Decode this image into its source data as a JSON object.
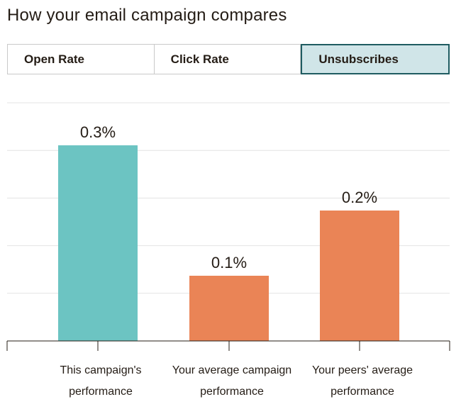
{
  "title": "How your email campaign compares",
  "tabs": [
    {
      "label": "Open Rate",
      "active": false
    },
    {
      "label": "Click Rate",
      "active": false
    },
    {
      "label": "Unsubscribes",
      "active": true
    }
  ],
  "colors": {
    "teal": "#6cc4c2",
    "orange": "#ea8456",
    "grid": "#e3e3e3",
    "axis": "#241c15",
    "active_tab_bg": "#d0e5e8",
    "active_tab_border": "#1f5c61"
  },
  "chart_data": {
    "type": "bar",
    "categories": [
      [
        "This campaign's",
        "performance"
      ],
      [
        "Your average campaign",
        "performance"
      ],
      [
        "Your peers' average",
        "performance"
      ]
    ],
    "values": [
      0.3,
      0.1,
      0.2
    ],
    "value_labels": [
      "0.3%",
      "0.1%",
      "0.2%"
    ],
    "bar_colors": [
      "#6cc4c2",
      "#ea8456",
      "#ea8456"
    ],
    "grid": true,
    "gridline_count": 5
  }
}
